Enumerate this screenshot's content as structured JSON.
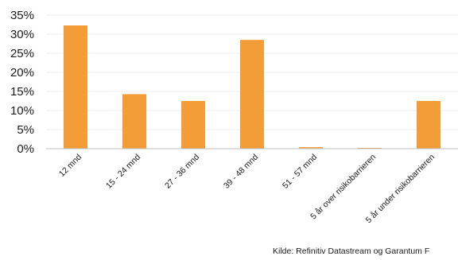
{
  "chart_data": {
    "type": "bar",
    "categories": [
      "12 mnd",
      "15 - 24 mnd",
      "27 - 36 mnd",
      "39 - 48 mnd",
      "51 - 57 mnd",
      "5 år over risikobarrieren",
      "5 år under risikobarrieren"
    ],
    "values": [
      32.3,
      14.3,
      12.5,
      28.5,
      0.4,
      0.2,
      12.5
    ],
    "value_format": "percent",
    "y_ticks": [
      "0%",
      "5%",
      "10%",
      "15%",
      "20%",
      "25%",
      "30%",
      "35%"
    ],
    "ylim": [
      0,
      35
    ],
    "grid": true,
    "bar_color": "#f29d38",
    "source": "Kilde: Refinitiv Datastream og Garantum F"
  }
}
